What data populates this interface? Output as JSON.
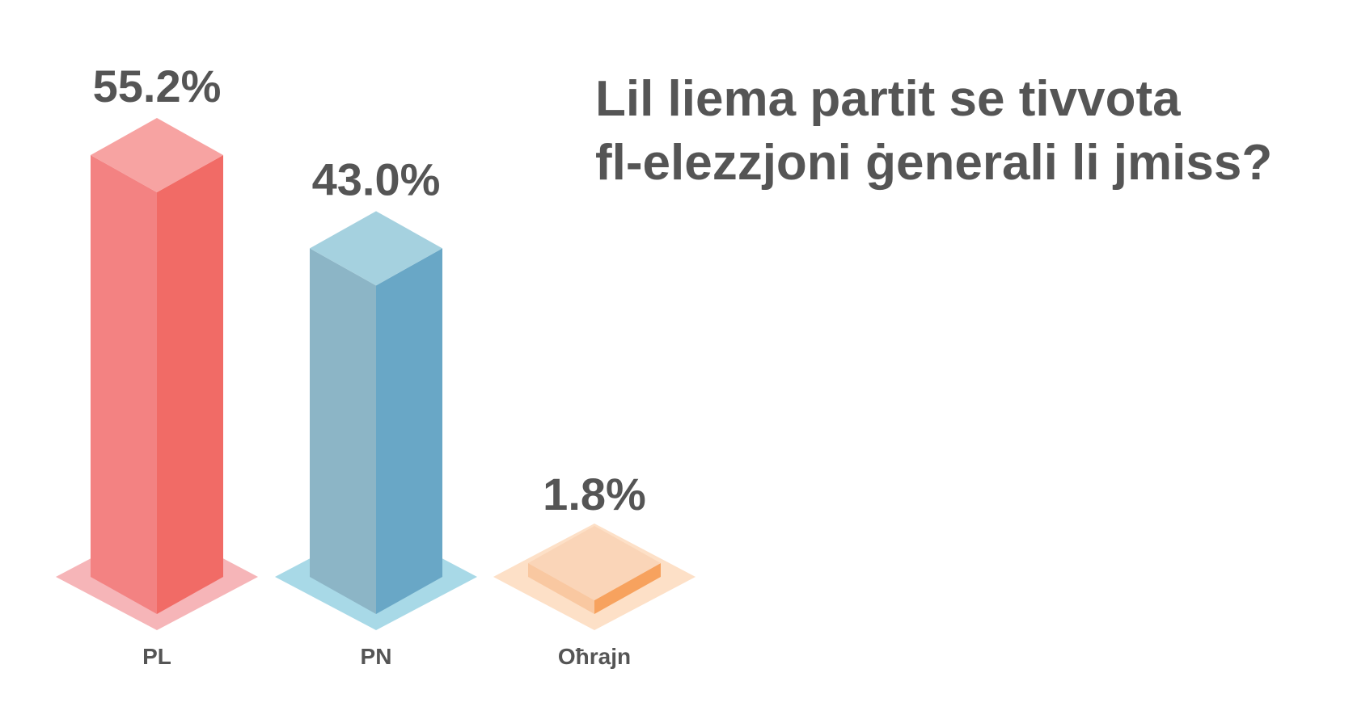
{
  "chart_data": {
    "type": "bar",
    "title_lines": [
      "Lil liema partit se tivvota",
      "fl-elezzjoni ġenerali li jmiss?"
    ],
    "categories": [
      "PL",
      "PN",
      "Oħrajn"
    ],
    "values": [
      55.2,
      43.0,
      1.8
    ],
    "value_labels": [
      "55.2%",
      "43.0%",
      "1.8%"
    ],
    "ylim": [
      0,
      55.2
    ],
    "grid": false,
    "legend": "none",
    "colors": [
      {
        "left": "#f38282",
        "right": "#f16b66",
        "top": "#f7a3a2",
        "shadow": "#f6b5b8"
      },
      {
        "left": "#8cb5c6",
        "right": "#69a7c6",
        "top": "#a5d1df",
        "shadow": "#a8d9e7"
      },
      {
        "left": "#f9c8a1",
        "right": "#f7a25e",
        "top": "#fad5b8",
        "shadow": "#fde0c7"
      }
    ]
  }
}
